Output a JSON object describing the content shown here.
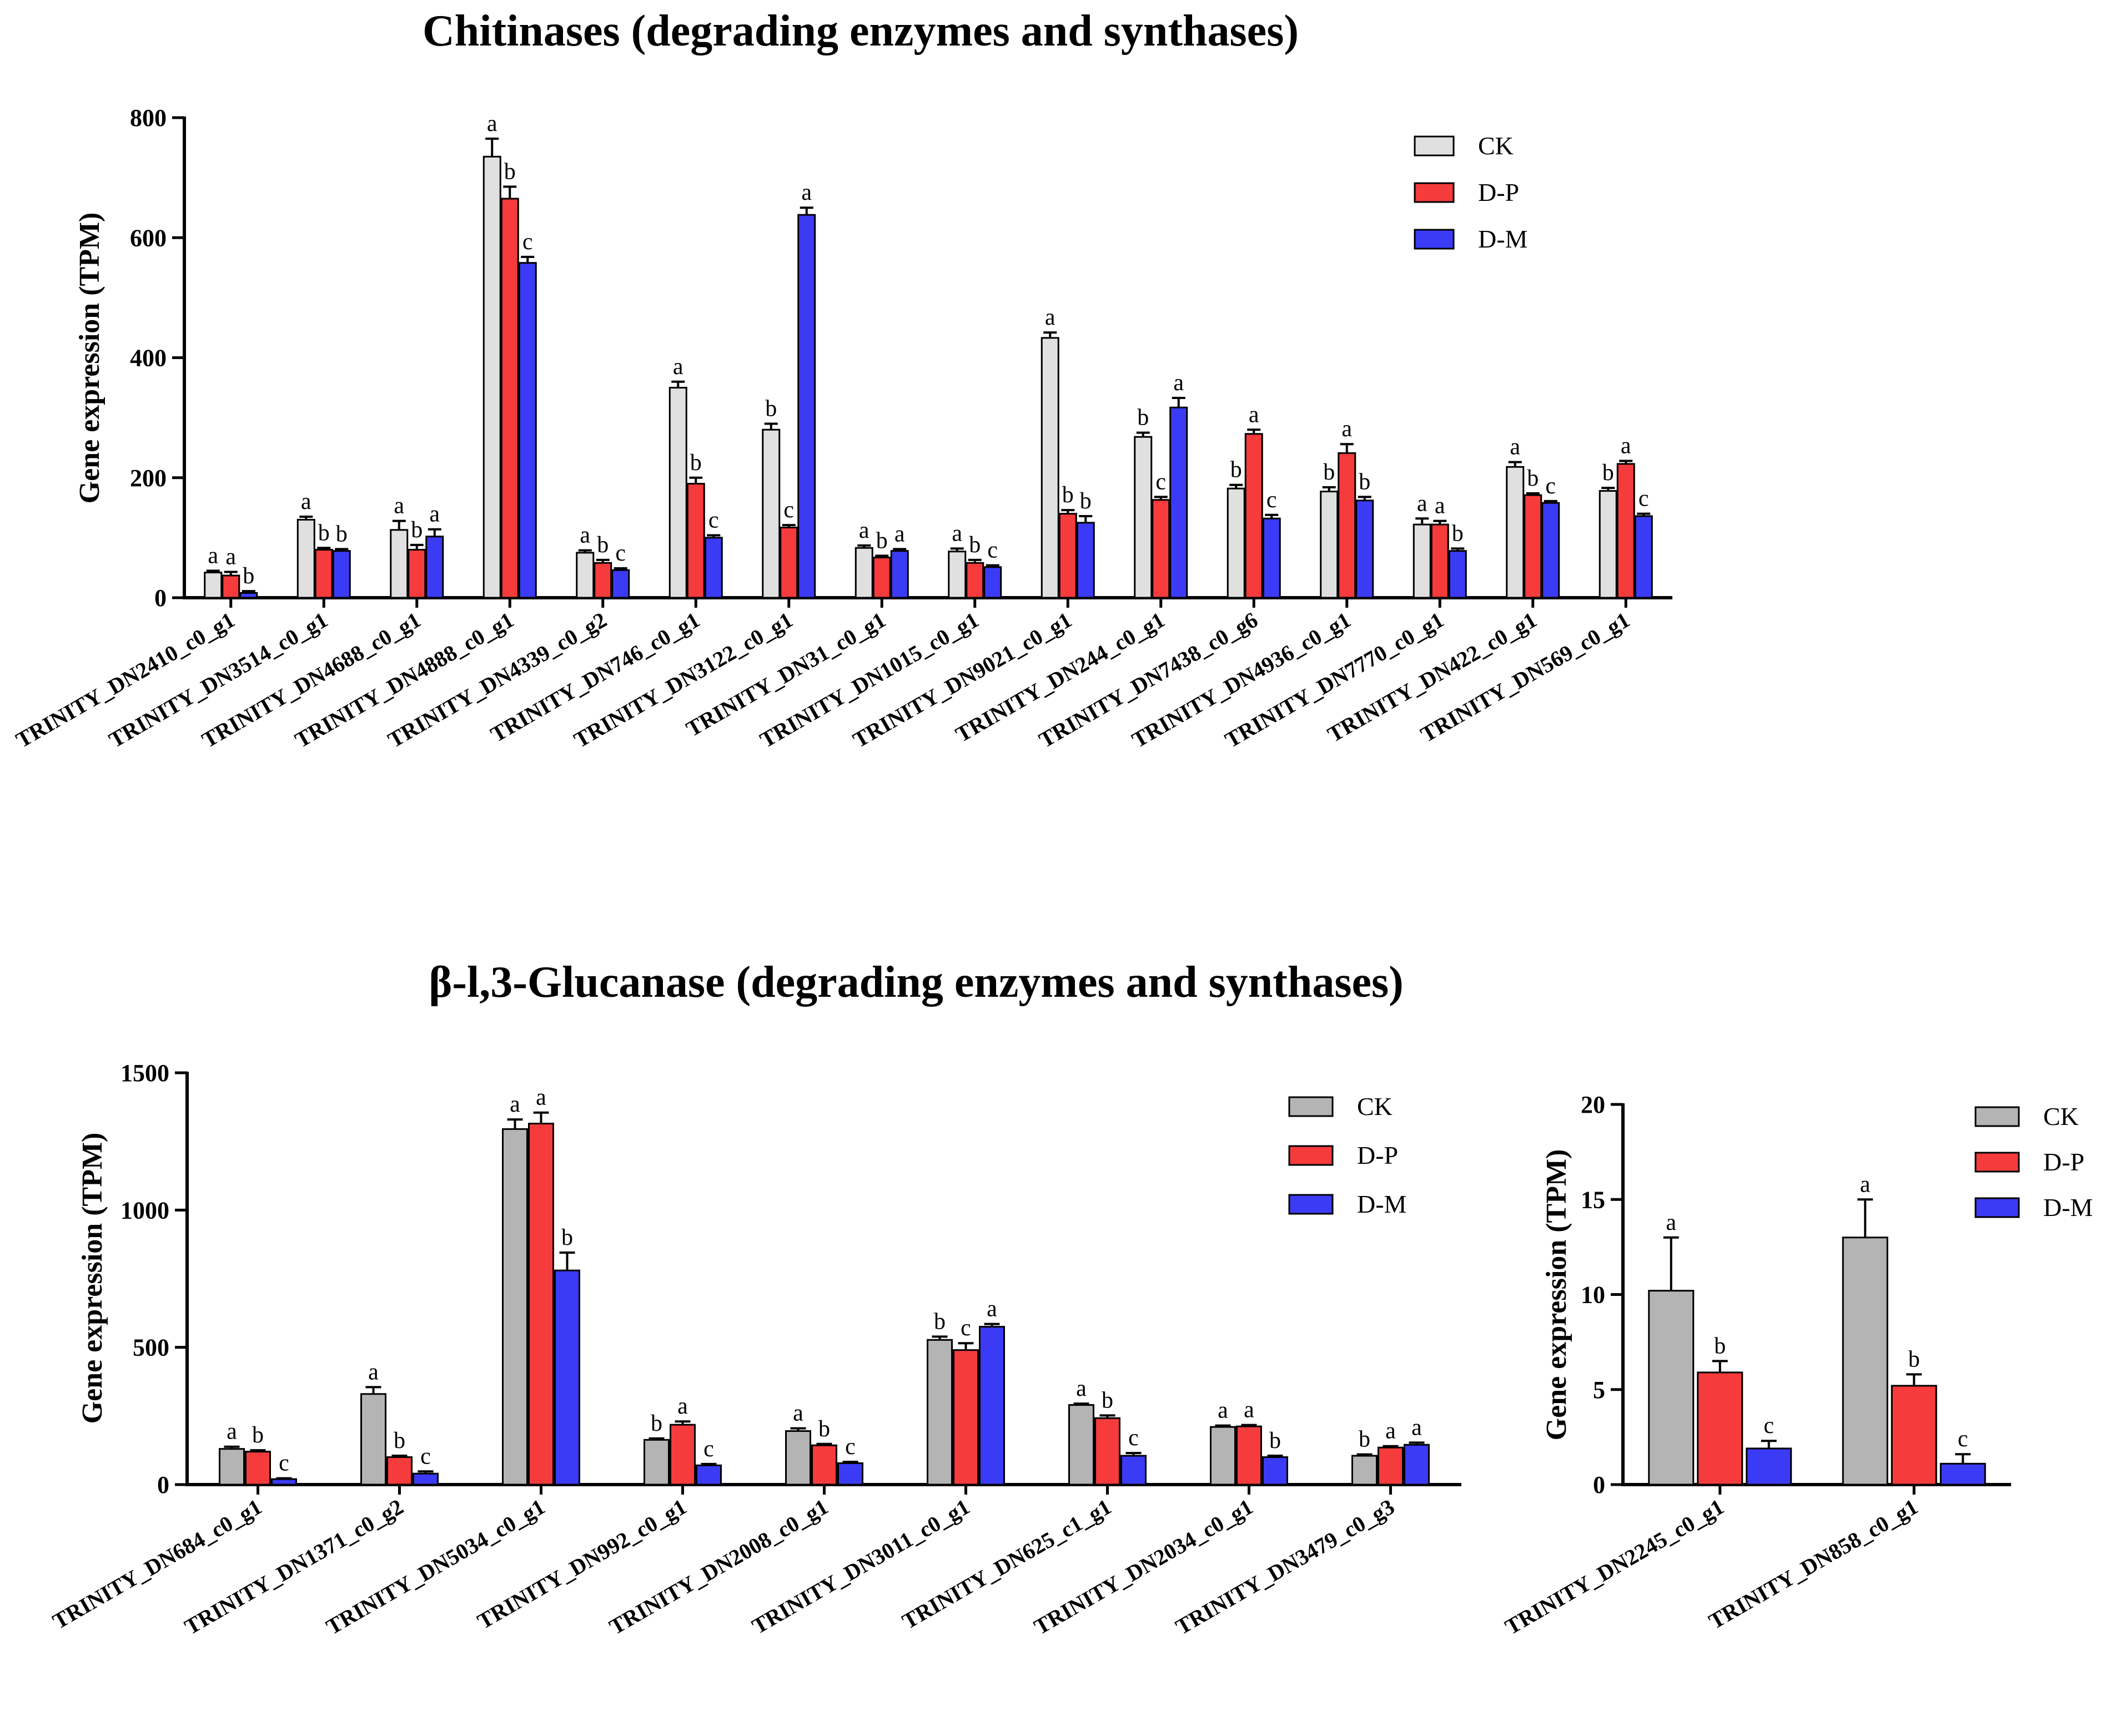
{
  "chart_data": [
    {
      "type": "bar",
      "title": "Chitinases (degrading enzymes and synthases)",
      "xlabel": "",
      "ylabel": "Gene expression (TPM)",
      "ylim": [
        0,
        800
      ],
      "yticks": [
        0,
        200,
        400,
        600,
        800
      ],
      "legend_position": "top-right",
      "categories": [
        "TRINITY_DN2410_c0_g1",
        "TRINITY_DN3514_c0_g1",
        "TRINITY_DN4688_c0_g1",
        "TRINITY_DN4888_c0_g1",
        "TRINITY_DN4339_c0_g2",
        "TRINITY_DN746_c0_g1",
        "TRINITY_DN3122_c0_g1",
        "TRINITY_DN31_c0_g1",
        "TRINITY_DN1015_c0_g1",
        "TRINITY_DN9021_c0_g1",
        "TRINITY_DN244_c0_g1",
        "TRINITY_DN7438_c0_g6",
        "TRINITY_DN4936_c0_g1",
        "TRINITY_DN7770_c0_g1",
        "TRINITY_DN422_c0_g1",
        "TRINITY_DN569_c0_g1"
      ],
      "series": [
        {
          "name": "CK",
          "color": "#e0e0e0",
          "values": [
            42,
            130,
            113,
            735,
            75,
            350,
            280,
            83,
            77,
            433,
            268,
            182,
            177,
            122,
            218,
            178
          ],
          "errors": [
            3,
            5,
            15,
            30,
            4,
            10,
            10,
            4,
            5,
            9,
            7,
            6,
            7,
            10,
            8,
            5
          ],
          "letters": [
            "a",
            "a",
            "a",
            "a",
            "a",
            "a",
            "b",
            "a",
            "a",
            "a",
            "b",
            "b",
            "b",
            "a",
            "a",
            "b"
          ]
        },
        {
          "name": "D-P",
          "color": "#f53b3b",
          "values": [
            37,
            80,
            80,
            665,
            58,
            190,
            117,
            67,
            58,
            140,
            163,
            273,
            241,
            122,
            171,
            223
          ],
          "errors": [
            6,
            3,
            8,
            20,
            5,
            10,
            4,
            3,
            5,
            6,
            5,
            7,
            15,
            6,
            3,
            5
          ],
          "letters": [
            "a",
            "b",
            "b",
            "b",
            "b",
            "b",
            "c",
            "b",
            "b",
            "b",
            "c",
            "a",
            "a",
            "a",
            "b",
            "a"
          ]
        },
        {
          "name": "D-M",
          "color": "#3b3bf5",
          "values": [
            8,
            78,
            102,
            558,
            46,
            100,
            638,
            78,
            51,
            125,
            317,
            132,
            162,
            78,
            158,
            136
          ],
          "errors": [
            3,
            3,
            12,
            10,
            3,
            4,
            12,
            3,
            3,
            11,
            16,
            6,
            6,
            4,
            3,
            4
          ],
          "letters": [
            "b",
            "b",
            "a",
            "c",
            "c",
            "c",
            "a",
            "a",
            "c",
            "b",
            "a",
            "c",
            "b",
            "b",
            "c",
            "c"
          ]
        }
      ]
    },
    {
      "type": "bar",
      "title": "β-l,3-Glucanase (degrading enzymes and synthases)",
      "xlabel": "",
      "ylabel": "Gene expression (TPM)",
      "ylim": [
        0,
        1500
      ],
      "yticks": [
        0,
        500,
        1000,
        1500
      ],
      "legend_position": "top-right",
      "categories": [
        "TRINITY_DN684_c0_g1",
        "TRINITY_DN1371_c0_g2",
        "TRINITY_DN5034_c0_g1",
        "TRINITY_DN992_c0_g1",
        "TRINITY_DN2008_c0_g1",
        "TRINITY_DN3011_c0_g1",
        "TRINITY_DN625_c1_g1",
        "TRINITY_DN2034_c0_g1",
        "TRINITY_DN3479_c0_g3"
      ],
      "series": [
        {
          "name": "CK",
          "color": "#b4b4b4",
          "values": [
            130,
            330,
            1295,
            163,
            195,
            527,
            290,
            210,
            105
          ],
          "errors": [
            8,
            25,
            35,
            5,
            10,
            12,
            5,
            5,
            5
          ],
          "letters": [
            "a",
            "a",
            "a",
            "b",
            "a",
            "b",
            "a",
            "a",
            "b"
          ]
        },
        {
          "name": "D-P",
          "color": "#f53b3b",
          "values": [
            120,
            100,
            1315,
            218,
            143,
            490,
            242,
            212,
            135
          ],
          "errors": [
            5,
            5,
            40,
            12,
            5,
            25,
            10,
            5,
            5
          ],
          "letters": [
            "b",
            "b",
            "a",
            "a",
            "b",
            "c",
            "b",
            "a",
            "a"
          ]
        },
        {
          "name": "D-M",
          "color": "#3b3bf5",
          "values": [
            20,
            40,
            780,
            70,
            78,
            575,
            105,
            100,
            145
          ],
          "errors": [
            3,
            8,
            65,
            5,
            5,
            10,
            10,
            5,
            8
          ],
          "letters": [
            "c",
            "c",
            "b",
            "c",
            "c",
            "a",
            "c",
            "b",
            "a"
          ]
        }
      ]
    },
    {
      "type": "bar",
      "title": "",
      "xlabel": "",
      "ylabel": "Gene expression (TPM)",
      "ylim": [
        0,
        20
      ],
      "yticks": [
        0,
        5,
        10,
        15,
        20
      ],
      "legend_position": "top-right",
      "categories": [
        "TRINITY_DN2245_c0_g1",
        "TRINITY_DN858_c0_g1"
      ],
      "series": [
        {
          "name": "CK",
          "color": "#b4b4b4",
          "values": [
            10.2,
            13.0
          ],
          "errors": [
            2.8,
            2.0
          ],
          "letters": [
            "a",
            "a"
          ]
        },
        {
          "name": "D-P",
          "color": "#f53b3b",
          "values": [
            5.9,
            5.2
          ],
          "errors": [
            0.6,
            0.6
          ],
          "letters": [
            "b",
            "b"
          ]
        },
        {
          "name": "D-M",
          "color": "#3b3bf5",
          "values": [
            1.9,
            1.1
          ],
          "errors": [
            0.4,
            0.5
          ],
          "letters": [
            "c",
            "c"
          ]
        }
      ]
    }
  ]
}
